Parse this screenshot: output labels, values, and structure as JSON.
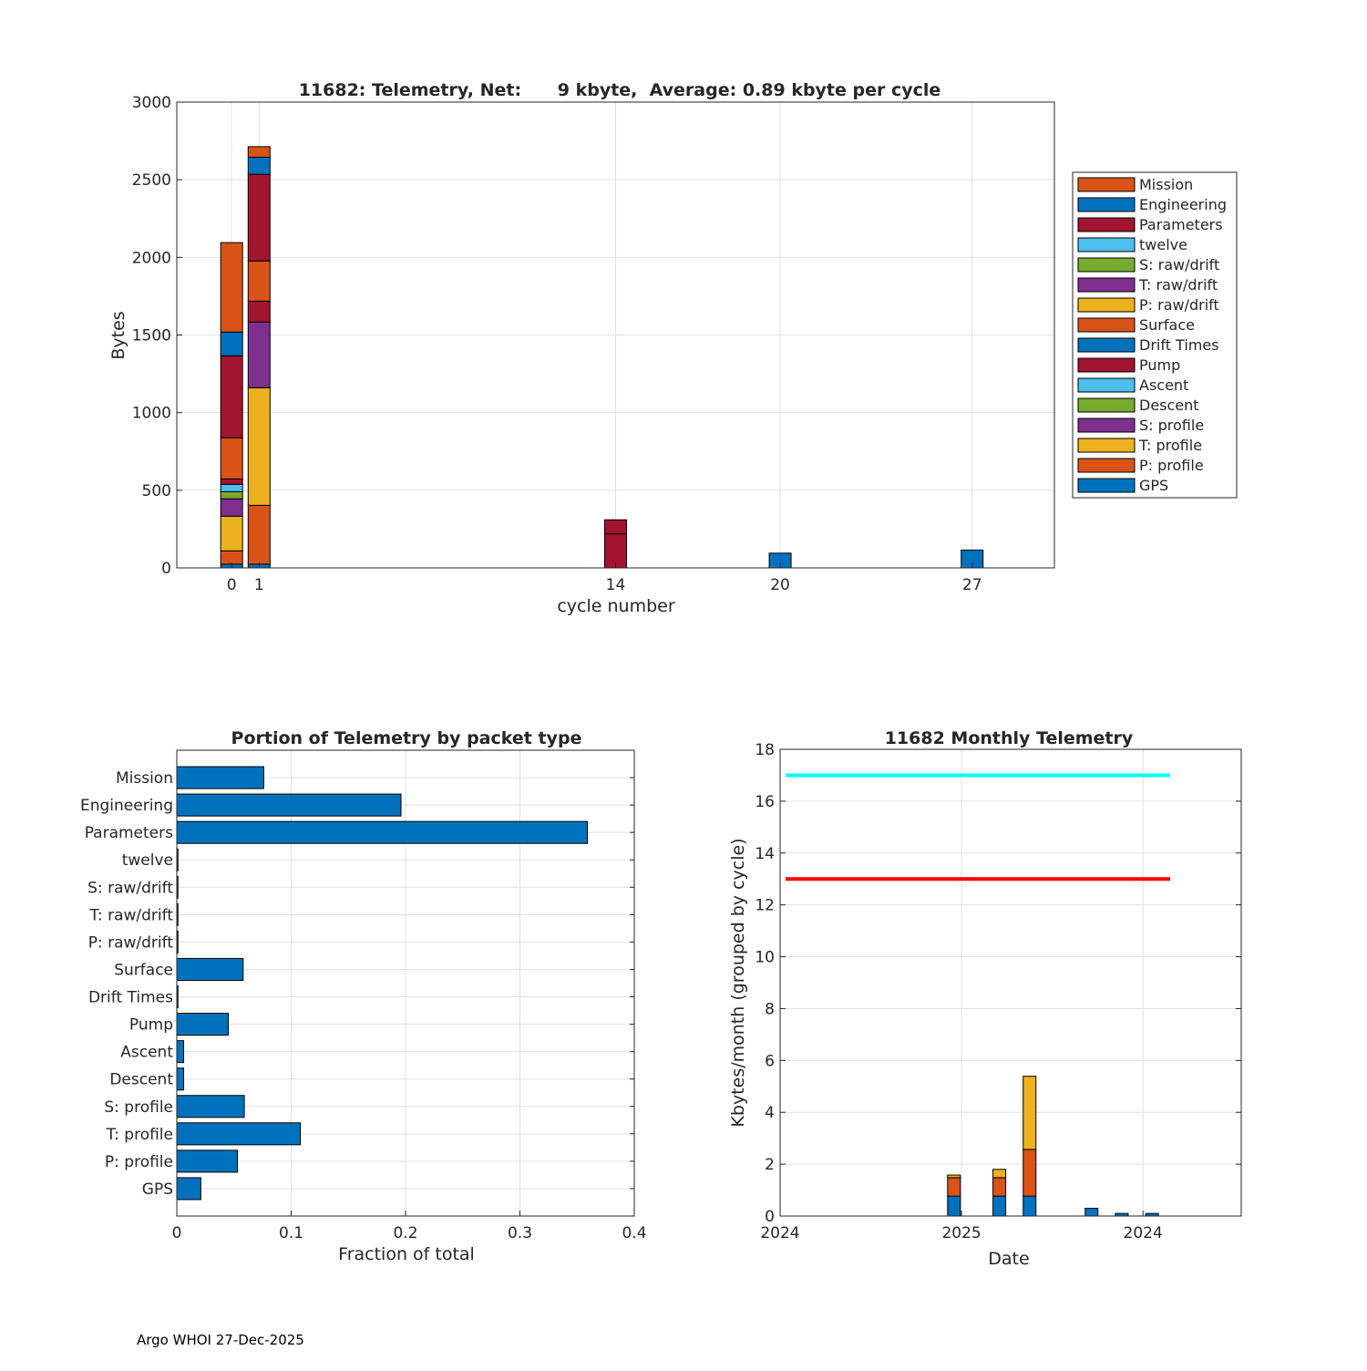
{
  "footer": "Argo WHOI 27-Dec-2025",
  "colors": {
    "Mission": "#D95319",
    "Engineering": "#0072BD",
    "Parameters": "#A2142F",
    "twelve": "#4DBEEE",
    "S: raw/drift": "#77AC30",
    "T: raw/drift": "#7E2F8E",
    "P: raw/drift": "#EDB120",
    "Surface": "#D95319",
    "Drift Times": "#0072BD",
    "Pump": "#A2142F",
    "Ascent": "#4DBEEE",
    "Descent": "#77AC30",
    "S: profile": "#7E2F8E",
    "T: profile": "#EDB120",
    "P: profile": "#D95319",
    "GPS": "#0072BD",
    "limit_high": "#00FFFF",
    "limit_low": "#FF0000"
  },
  "chart_data": [
    {
      "type": "bar",
      "stacked": true,
      "title": "11682: Telemetry, Net:      9 kbyte,  Average: 0.89 kbyte per cycle",
      "xlabel": "cycle number",
      "ylabel": "Bytes",
      "xlim": [
        -2,
        30
      ],
      "ylim": [
        0,
        3000
      ],
      "xticks": [
        0,
        1,
        14,
        20,
        27
      ],
      "yticks": [
        0,
        500,
        1000,
        1500,
        2000,
        2500,
        3000
      ],
      "grid": true,
      "legend_placement": "outside-right",
      "legend": [
        "Mission",
        "Engineering",
        "Parameters",
        "twelve",
        "S: raw/drift",
        "T: raw/drift",
        "P: raw/drift",
        "Surface",
        "Drift Times",
        "Pump",
        "Ascent",
        "Descent",
        "S: profile",
        "T: profile",
        "P: profile",
        "GPS"
      ],
      "stack_order": [
        "GPS",
        "P: profile",
        "T: profile",
        "S: profile",
        "Descent",
        "Ascent",
        "Pump",
        "Drift Times",
        "Surface",
        "P: raw/drift",
        "T: raw/drift",
        "S: raw/drift",
        "twelve",
        "Parameters",
        "Engineering",
        "Mission"
      ],
      "x": [
        0,
        1,
        14,
        20,
        27
      ],
      "series": [
        {
          "name": "GPS",
          "values": [
            24,
            24,
            0,
            0,
            0
          ]
        },
        {
          "name": "P: profile",
          "values": [
            86,
            379,
            0,
            0,
            0
          ]
        },
        {
          "name": "T: profile",
          "values": [
            223,
            757,
            0,
            0,
            0
          ]
        },
        {
          "name": "S: profile",
          "values": [
            112,
            423,
            0,
            0,
            0
          ]
        },
        {
          "name": "Descent",
          "values": [
            46,
            0,
            0,
            0,
            0
          ]
        },
        {
          "name": "Ascent",
          "values": [
            47,
            0,
            0,
            0,
            0
          ]
        },
        {
          "name": "Pump",
          "values": [
            35,
            135,
            220,
            0,
            0
          ]
        },
        {
          "name": "Drift Times",
          "values": [
            0,
            0,
            0,
            0,
            0
          ]
        },
        {
          "name": "Surface",
          "values": [
            265,
            259,
            0,
            0,
            0
          ]
        },
        {
          "name": "P: raw/drift",
          "values": [
            0,
            0,
            0,
            0,
            0
          ]
        },
        {
          "name": "T: raw/drift",
          "values": [
            0,
            0,
            0,
            0,
            0
          ]
        },
        {
          "name": "S: raw/drift",
          "values": [
            0,
            0,
            0,
            0,
            0
          ]
        },
        {
          "name": "twelve",
          "values": [
            0,
            0,
            0,
            0,
            0
          ]
        },
        {
          "name": "Parameters",
          "values": [
            528,
            558,
            90,
            0,
            0
          ]
        },
        {
          "name": "Engineering",
          "values": [
            153,
            110,
            0,
            95,
            115
          ]
        },
        {
          "name": "Mission",
          "values": [
            576,
            68,
            0,
            0,
            0
          ]
        }
      ]
    },
    {
      "type": "bar",
      "orientation": "horizontal",
      "title": "Portion of Telemetry by packet type",
      "xlabel": "Fraction of total",
      "xlim": [
        0,
        0.4
      ],
      "xticks": [
        0,
        0.1,
        0.2,
        0.3,
        0.4
      ],
      "xtick_labels": [
        "0",
        "0.1",
        "0.2",
        "0.3",
        "0.4"
      ],
      "grid": true,
      "categories": [
        "Mission",
        "Engineering",
        "Parameters",
        "twelve",
        "S: raw/drift",
        "T: raw/drift",
        "P: raw/drift",
        "Surface",
        "Drift Times",
        "Pump",
        "Ascent",
        "Descent",
        "S: profile",
        "T: profile",
        "P: profile",
        "GPS"
      ],
      "values": [
        0.076,
        0.196,
        0.359,
        0.001,
        0.001,
        0.001,
        0.001,
        0.058,
        0.001,
        0.045,
        0.006,
        0.006,
        0.059,
        0.108,
        0.053,
        0.021
      ]
    },
    {
      "type": "bar",
      "stacked": true,
      "title": "11682 Monthly Telemetry",
      "xlabel": "Date",
      "ylabel": "Kbytes/month (grouped by cycle)",
      "xlim": [
        0,
        30.5
      ],
      "ylim": [
        0,
        18
      ],
      "yticks": [
        0,
        2,
        4,
        6,
        8,
        10,
        12,
        14,
        16,
        18
      ],
      "xticks": [
        0,
        12,
        24
      ],
      "xtick_labels": [
        "2024",
        "2025",
        "2024"
      ],
      "grid": true,
      "x": [
        11.5,
        14.5,
        16.5,
        20.6,
        22.6,
        24.6
      ],
      "series": [
        {
          "name": "GPS",
          "color": "#0072BD",
          "values": [
            0.77,
            0.77,
            0.77,
            0.3,
            0.1,
            0.1
          ]
        },
        {
          "name": "P: profile",
          "color": "#D95319",
          "values": [
            0.71,
            0.71,
            1.8,
            0,
            0,
            0
          ]
        },
        {
          "name": "T: profile",
          "color": "#EDB120",
          "values": [
            0.1,
            0.32,
            2.82,
            0,
            0,
            0
          ]
        }
      ],
      "lines": [
        {
          "name": "limit_high",
          "y": 17,
          "x": [
            0.36,
            25.8
          ],
          "color": "#00FFFF"
        },
        {
          "name": "limit_low",
          "y": 13,
          "x": [
            0.36,
            25.8
          ],
          "color": "#FF0000"
        }
      ]
    }
  ]
}
